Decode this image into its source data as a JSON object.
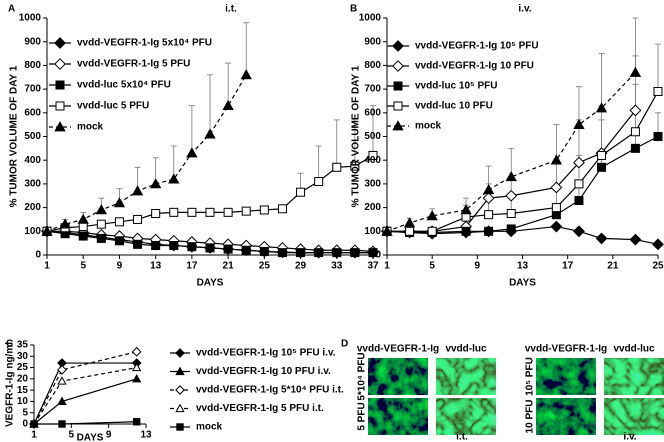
{
  "chart_data": [
    {
      "type": "line",
      "label": "A",
      "title": "i.t.",
      "xlabel": "DAYS",
      "ylabel": "% TUMOR VOLUME OF DAY 1",
      "x": [
        1,
        3,
        5,
        7,
        9,
        11,
        13,
        15,
        17,
        19,
        21,
        23,
        25,
        27,
        29,
        31,
        33,
        35,
        37
      ],
      "xlim": [
        1,
        37
      ],
      "xticks": [
        1,
        5,
        9,
        13,
        17,
        21,
        25,
        29,
        33,
        37
      ],
      "ylim": [
        0,
        1000
      ],
      "yticks": [
        0,
        100,
        200,
        300,
        400,
        500,
        600,
        700,
        800,
        900,
        1000
      ],
      "series": [
        {
          "name": "vvdd-VEGFR-1-Ig 5x10⁴ PFU",
          "color": "#000000",
          "marker": "diamond",
          "dash": false,
          "values": [
            100,
            95,
            85,
            75,
            65,
            55,
            45,
            40,
            35,
            30,
            25,
            20,
            15,
            12,
            10,
            10,
            10,
            10,
            10
          ]
        },
        {
          "name": "vvdd-VEGFR-1-Ig 5 PFU",
          "color": "#000000",
          "marker": "diamond-open",
          "dash": false,
          "values": [
            100,
            100,
            95,
            85,
            80,
            70,
            65,
            60,
            55,
            50,
            45,
            40,
            35,
            30,
            25,
            20,
            20,
            20,
            15
          ]
        },
        {
          "name": "vvdd-luc 5x10⁴ PFU",
          "color": "#000000",
          "marker": "square",
          "dash": false,
          "values": [
            100,
            90,
            80,
            70,
            60,
            45,
            40,
            40,
            35,
            30,
            25,
            20,
            15,
            10,
            10,
            10,
            10,
            10,
            10
          ]
        },
        {
          "name": "vvdd-luc 5 PFU",
          "color": "#000000",
          "marker": "square-open",
          "dash": false,
          "values": [
            100,
            115,
            120,
            130,
            140,
            150,
            175,
            180,
            180,
            180,
            180,
            185,
            190,
            195,
            265,
            310,
            370,
            375,
            420
          ],
          "errors": [
            null,
            null,
            null,
            null,
            null,
            null,
            null,
            null,
            null,
            null,
            null,
            null,
            null,
            null,
            80,
            150,
            200,
            200,
            210
          ]
        },
        {
          "name": "mock",
          "color": "#000000",
          "marker": "triangle",
          "dash": true,
          "values": [
            100,
            130,
            150,
            190,
            220,
            270,
            300,
            320,
            430,
            510,
            630,
            760,
            null,
            null,
            null,
            null,
            null,
            null,
            null
          ],
          "errors": [
            10,
            20,
            30,
            50,
            60,
            100,
            110,
            140,
            200,
            250,
            180,
            220,
            null,
            null,
            null,
            null,
            null,
            null,
            null
          ]
        }
      ]
    },
    {
      "type": "line",
      "label": "B",
      "title": "i.v.",
      "xlabel": "DAYS",
      "ylabel": "% TUMOR VOLUME OF DAY 1",
      "x": [
        1,
        3,
        5,
        8,
        10,
        12,
        16,
        18,
        20,
        23,
        25
      ],
      "xlim": [
        1,
        25
      ],
      "xticks": [
        1,
        5,
        9,
        13,
        17,
        21,
        25
      ],
      "ylim": [
        0,
        1000
      ],
      "yticks": [
        0,
        100,
        200,
        300,
        400,
        500,
        600,
        700,
        800,
        900,
        1000
      ],
      "series": [
        {
          "name": "vvdd-VEGFR-1-Ig 10⁵ PFU",
          "color": "#000000",
          "marker": "diamond",
          "dash": false,
          "values": [
            100,
            95,
            90,
            95,
            100,
            100,
            120,
            100,
            70,
            65,
            45
          ]
        },
        {
          "name": "vvdd-VEGFR-1-Ig 10 PFU",
          "color": "#000000",
          "marker": "diamond-open",
          "dash": false,
          "values": [
            100,
            100,
            100,
            120,
            240,
            250,
            285,
            390,
            430,
            610,
            null
          ],
          "errors": [
            null,
            null,
            null,
            40,
            60,
            80,
            120,
            180,
            200,
            230,
            null
          ]
        },
        {
          "name": "vvdd-luc 10⁵ PFU",
          "color": "#000000",
          "marker": "square",
          "dash": false,
          "values": [
            100,
            95,
            95,
            100,
            100,
            110,
            170,
            230,
            370,
            450,
            500
          ],
          "errors": [
            null,
            null,
            null,
            null,
            null,
            null,
            40,
            60,
            70,
            80,
            100
          ]
        },
        {
          "name": "vvdd-luc 10 PFU",
          "color": "#000000",
          "marker": "square-open",
          "dash": false,
          "values": [
            100,
            100,
            100,
            160,
            170,
            175,
            200,
            300,
            420,
            520,
            690
          ],
          "errors": [
            null,
            null,
            null,
            50,
            60,
            70,
            90,
            120,
            150,
            200,
            200
          ]
        },
        {
          "name": "mock",
          "color": "#000000",
          "marker": "triangle",
          "dash": true,
          "values": [
            100,
            135,
            165,
            190,
            275,
            330,
            400,
            550,
            620,
            770,
            null
          ],
          "errors": [
            10,
            20,
            30,
            50,
            100,
            120,
            150,
            160,
            230,
            230,
            null
          ]
        }
      ]
    },
    {
      "type": "line",
      "label": "C",
      "xlabel": "DAYS",
      "ylabel": "VEGFR-1-Ig ng/ml",
      "x": [
        1,
        4,
        12
      ],
      "xlim": [
        1,
        13
      ],
      "xticks": [
        1,
        5,
        9,
        13
      ],
      "ylim": [
        0,
        35
      ],
      "yticks": [
        0,
        5,
        10,
        15,
        20,
        25,
        30,
        35
      ],
      "series": [
        {
          "name": "vvdd-VEGFR-1-Ig 10⁵ PFU i.v.",
          "color": "#000000",
          "marker": "diamond",
          "dash": false,
          "values": [
            0,
            27,
            27
          ]
        },
        {
          "name": "vvdd-VEGFR-1-Ig 10 PFU i.v.",
          "color": "#000000",
          "marker": "triangle",
          "dash": false,
          "values": [
            0,
            10,
            20
          ]
        },
        {
          "name": "vvdd-VEGFR-1-Ig 5*10⁴ PFU i.t.",
          "color": "#000000",
          "marker": "diamond-open",
          "dash": true,
          "values": [
            0,
            24,
            32
          ]
        },
        {
          "name": "vvdd-VEGFR-1-Ig 5 PFU i.t.",
          "color": "#000000",
          "marker": "triangle-open",
          "dash": true,
          "values": [
            0,
            19,
            25
          ]
        },
        {
          "name": "mock",
          "color": "#000000",
          "marker": "square",
          "dash": false,
          "values": [
            0,
            0,
            1
          ]
        }
      ]
    }
  ],
  "micrographs": {
    "label": "D",
    "groups": [
      {
        "route": "i.t.",
        "columns": [
          "vvdd-VEGFR-1-Ig",
          "vvdd-luc"
        ],
        "rows": [
          "5*10⁴ PFU",
          "5 PFU"
        ]
      },
      {
        "route": "i.v.",
        "columns": [
          "vvdd-VEGFR-1-Ig",
          "vvdd-luc"
        ],
        "rows": [
          "10⁵ PFU",
          "10 PFU"
        ]
      }
    ]
  }
}
